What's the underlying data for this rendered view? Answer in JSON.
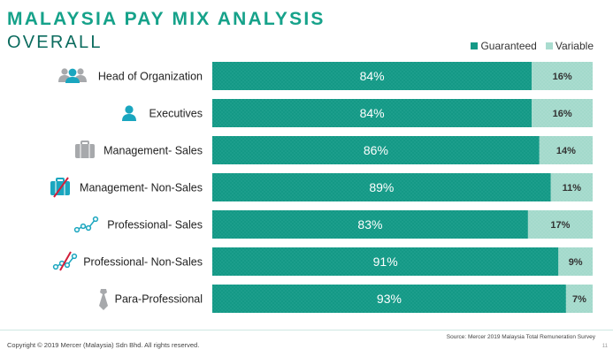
{
  "header": {
    "title": "MALAYSIA PAY MIX ANALYSIS",
    "subtitle": "OVERALL"
  },
  "colors": {
    "guaranteed": "#149986",
    "variable": "#a9dccf",
    "title_accent": "#16a28a",
    "icon_teal": "#1aa6bf",
    "icon_gray": "#a7a9ac",
    "icon_red": "#d11f3a"
  },
  "chart_data": {
    "type": "bar",
    "orientation": "horizontal",
    "stacked": true,
    "percent_scale": [
      0,
      100
    ],
    "categories": [
      "Head of Organization",
      "Executives",
      "Management- Sales",
      "Management- Non-Sales",
      "Professional- Sales",
      "Professional- Non-Sales",
      "Para-Professional"
    ],
    "category_icons": [
      "group-people-icon",
      "person-icon",
      "briefcase-icon",
      "briefcase-crossed-icon",
      "line-chart-icon",
      "line-chart-crossed-icon",
      "tie-icon"
    ],
    "series": [
      {
        "name": "Guaranteed",
        "values": [
          84,
          84,
          86,
          89,
          83,
          91,
          93
        ]
      },
      {
        "name": "Variable",
        "values": [
          16,
          16,
          14,
          11,
          17,
          9,
          7
        ]
      }
    ],
    "legend_position": "top-right",
    "grid": false
  },
  "footer": {
    "copyright": "Copyright © 2019 Mercer (Malaysia) Sdn Bhd. All rights reserved.",
    "source": "Source: Mercer 2019 Malaysia Total Remuneration Survey",
    "page_number": "11"
  }
}
